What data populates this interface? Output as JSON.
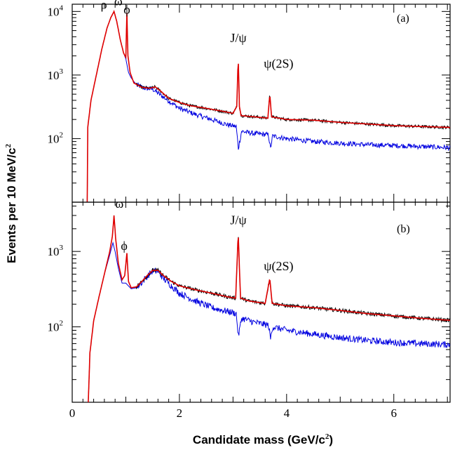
{
  "chart_data": {
    "type": "line",
    "xlabel_main": "Candidate mass (GeV/c",
    "xlabel_sup": "2",
    "xlabel_tail": ")",
    "ylabel_main": "Events per 10 MeV/c",
    "ylabel_sup": "2",
    "xlim": [
      0,
      7.05
    ],
    "x_ticks": [
      0,
      2,
      4,
      6
    ],
    "x_tick_labels": [
      "0",
      "2",
      "4",
      "6"
    ],
    "log_y": true,
    "colors": {
      "data": "#000000",
      "fit": "#e00000",
      "background": "#0000e0"
    },
    "panels": [
      {
        "tag": "(a)",
        "ylim": [
          10,
          13000
        ],
        "y_tick_labels": [
          {
            "base": "10",
            "exp": "2",
            "value": 100
          },
          {
            "base": "10",
            "exp": "3",
            "value": 1000
          },
          {
            "base": "10",
            "exp": "4",
            "value": 10000
          }
        ],
        "peak_labels": [
          {
            "text": "ρ",
            "x": 0.59,
            "y": 11000
          },
          {
            "text": "ω",
            "x": 0.86,
            "y": 12500
          },
          {
            "text": "ϕ",
            "x": 1.02,
            "y": 9200
          },
          {
            "text": "J/ψ",
            "x": 3.1,
            "y": 3300
          },
          {
            "text": "ψ(2S)",
            "x": 3.85,
            "y": 1300
          }
        ],
        "data_points": [
          [
            0.28,
            10
          ],
          [
            0.29,
            150
          ],
          [
            0.35,
            400
          ],
          [
            0.45,
            1000
          ],
          [
            0.55,
            2500
          ],
          [
            0.65,
            5500
          ],
          [
            0.72,
            8000
          ],
          [
            0.78,
            10000
          ],
          [
            0.83,
            7000
          ],
          [
            0.9,
            3500
          ],
          [
            0.96,
            2200
          ],
          [
            1.0,
            1900
          ],
          [
            1.02,
            9500
          ],
          [
            1.04,
            2000
          ],
          [
            1.08,
            1100
          ],
          [
            1.15,
            750
          ],
          [
            1.3,
            640
          ],
          [
            1.45,
            620
          ],
          [
            1.55,
            650
          ],
          [
            1.65,
            560
          ],
          [
            1.8,
            430
          ],
          [
            2.0,
            370
          ],
          [
            2.2,
            330
          ],
          [
            2.5,
            300
          ],
          [
            2.8,
            270
          ],
          [
            3.0,
            250
          ],
          [
            3.07,
            320
          ],
          [
            3.097,
            1800
          ],
          [
            3.12,
            320
          ],
          [
            3.15,
            230
          ],
          [
            3.4,
            220
          ],
          [
            3.65,
            210
          ],
          [
            3.686,
            520
          ],
          [
            3.72,
            220
          ],
          [
            4.0,
            200
          ],
          [
            4.5,
            195
          ],
          [
            5.0,
            180
          ],
          [
            5.5,
            170
          ],
          [
            6.0,
            160
          ],
          [
            6.5,
            155
          ],
          [
            7.05,
            150
          ]
        ],
        "fit_points": [
          [
            0.28,
            10
          ],
          [
            0.29,
            150
          ],
          [
            0.35,
            400
          ],
          [
            0.45,
            1000
          ],
          [
            0.55,
            2500
          ],
          [
            0.65,
            5500
          ],
          [
            0.72,
            8000
          ],
          [
            0.78,
            10000
          ],
          [
            0.83,
            7000
          ],
          [
            0.9,
            3500
          ],
          [
            0.96,
            2200
          ],
          [
            1.0,
            1900
          ],
          [
            1.02,
            9500
          ],
          [
            1.04,
            2000
          ],
          [
            1.08,
            1100
          ],
          [
            1.15,
            750
          ],
          [
            1.3,
            640
          ],
          [
            1.45,
            620
          ],
          [
            1.55,
            650
          ],
          [
            1.65,
            560
          ],
          [
            1.8,
            430
          ],
          [
            2.0,
            370
          ],
          [
            2.2,
            330
          ],
          [
            2.5,
            300
          ],
          [
            2.8,
            270
          ],
          [
            3.0,
            250
          ],
          [
            3.07,
            320
          ],
          [
            3.097,
            1900
          ],
          [
            3.12,
            320
          ],
          [
            3.15,
            230
          ],
          [
            3.4,
            220
          ],
          [
            3.65,
            210
          ],
          [
            3.686,
            500
          ],
          [
            3.72,
            220
          ],
          [
            4.0,
            200
          ],
          [
            4.5,
            195
          ],
          [
            5.0,
            180
          ],
          [
            5.5,
            170
          ],
          [
            6.0,
            160
          ],
          [
            6.5,
            155
          ],
          [
            7.05,
            150
          ]
        ],
        "background_points": [
          [
            0.28,
            10
          ],
          [
            0.29,
            150
          ],
          [
            0.35,
            400
          ],
          [
            0.45,
            1000
          ],
          [
            0.55,
            2500
          ],
          [
            0.65,
            5500
          ],
          [
            0.72,
            8000
          ],
          [
            0.78,
            10000
          ],
          [
            0.83,
            7000
          ],
          [
            0.9,
            3500
          ],
          [
            0.96,
            2200
          ],
          [
            1.0,
            1800
          ],
          [
            1.05,
            1100
          ],
          [
            1.1,
            900
          ],
          [
            1.2,
            700
          ],
          [
            1.35,
            620
          ],
          [
            1.5,
            600
          ],
          [
            1.6,
            520
          ],
          [
            1.75,
            420
          ],
          [
            2.0,
            300
          ],
          [
            2.3,
            240
          ],
          [
            2.6,
            200
          ],
          [
            2.9,
            165
          ],
          [
            3.06,
            155
          ],
          [
            3.1,
            70
          ],
          [
            3.16,
            130
          ],
          [
            3.4,
            120
          ],
          [
            3.66,
            115
          ],
          [
            3.7,
            70
          ],
          [
            3.74,
            110
          ],
          [
            4.0,
            100
          ],
          [
            4.5,
            90
          ],
          [
            5.0,
            85
          ],
          [
            5.5,
            80
          ],
          [
            6.0,
            78
          ],
          [
            6.5,
            75
          ],
          [
            7.05,
            72
          ]
        ],
        "data_noise": 0.055,
        "background_noise": 0.09
      },
      {
        "tag": "(b)",
        "ylim": [
          10,
          4500
        ],
        "y_tick_labels": [
          {
            "base": "10",
            "exp": "2",
            "value": 100
          },
          {
            "base": "10",
            "exp": "3",
            "value": 1000
          }
        ],
        "peak_labels": [
          {
            "text": "ω",
            "x": 0.88,
            "y": 3800
          },
          {
            "text": "ϕ",
            "x": 0.97,
            "y": 1050
          },
          {
            "text": "J/ψ",
            "x": 3.1,
            "y": 2300
          },
          {
            "text": "ψ(2S)",
            "x": 3.85,
            "y": 560
          }
        ],
        "data_points": [
          [
            0.3,
            10
          ],
          [
            0.33,
            45
          ],
          [
            0.4,
            120
          ],
          [
            0.5,
            250
          ],
          [
            0.6,
            500
          ],
          [
            0.7,
            1000
          ],
          [
            0.75,
            1600
          ],
          [
            0.78,
            3000
          ],
          [
            0.81,
            1500
          ],
          [
            0.86,
            700
          ],
          [
            0.93,
            420
          ],
          [
            0.98,
            480
          ],
          [
            1.02,
            950
          ],
          [
            1.05,
            400
          ],
          [
            1.1,
            330
          ],
          [
            1.2,
            340
          ],
          [
            1.3,
            400
          ],
          [
            1.4,
            480
          ],
          [
            1.5,
            560
          ],
          [
            1.6,
            560
          ],
          [
            1.7,
            480
          ],
          [
            1.85,
            400
          ],
          [
            2.0,
            350
          ],
          [
            2.3,
            310
          ],
          [
            2.6,
            280
          ],
          [
            2.9,
            250
          ],
          [
            3.05,
            240
          ],
          [
            3.097,
            1750
          ],
          [
            3.14,
            240
          ],
          [
            3.3,
            220
          ],
          [
            3.6,
            205
          ],
          [
            3.686,
            440
          ],
          [
            3.73,
            205
          ],
          [
            4.0,
            190
          ],
          [
            4.5,
            180
          ],
          [
            5.0,
            165
          ],
          [
            5.5,
            150
          ],
          [
            6.0,
            140
          ],
          [
            6.5,
            130
          ],
          [
            7.05,
            122
          ]
        ],
        "fit_points": [
          [
            0.3,
            10
          ],
          [
            0.33,
            45
          ],
          [
            0.4,
            120
          ],
          [
            0.5,
            250
          ],
          [
            0.6,
            500
          ],
          [
            0.7,
            1000
          ],
          [
            0.75,
            1600
          ],
          [
            0.78,
            3000
          ],
          [
            0.81,
            1500
          ],
          [
            0.86,
            700
          ],
          [
            0.93,
            420
          ],
          [
            0.98,
            480
          ],
          [
            1.02,
            950
          ],
          [
            1.05,
            400
          ],
          [
            1.1,
            330
          ],
          [
            1.2,
            340
          ],
          [
            1.3,
            400
          ],
          [
            1.4,
            480
          ],
          [
            1.5,
            560
          ],
          [
            1.6,
            560
          ],
          [
            1.7,
            480
          ],
          [
            1.85,
            400
          ],
          [
            2.0,
            350
          ],
          [
            2.3,
            310
          ],
          [
            2.6,
            280
          ],
          [
            2.9,
            250
          ],
          [
            3.05,
            240
          ],
          [
            3.097,
            1750
          ],
          [
            3.14,
            240
          ],
          [
            3.3,
            220
          ],
          [
            3.6,
            205
          ],
          [
            3.686,
            440
          ],
          [
            3.73,
            205
          ],
          [
            4.0,
            190
          ],
          [
            4.5,
            180
          ],
          [
            5.0,
            165
          ],
          [
            5.5,
            150
          ],
          [
            6.0,
            140
          ],
          [
            6.5,
            130
          ],
          [
            7.05,
            122
          ]
        ],
        "background_points": [
          [
            0.3,
            10
          ],
          [
            0.33,
            45
          ],
          [
            0.4,
            120
          ],
          [
            0.5,
            250
          ],
          [
            0.6,
            500
          ],
          [
            0.7,
            900
          ],
          [
            0.76,
            1300
          ],
          [
            0.8,
            1000
          ],
          [
            0.86,
            600
          ],
          [
            0.93,
            380
          ],
          [
            1.0,
            380
          ],
          [
            1.1,
            320
          ],
          [
            1.2,
            330
          ],
          [
            1.3,
            390
          ],
          [
            1.4,
            470
          ],
          [
            1.5,
            550
          ],
          [
            1.6,
            540
          ],
          [
            1.7,
            440
          ],
          [
            1.85,
            350
          ],
          [
            2.0,
            280
          ],
          [
            2.3,
            220
          ],
          [
            2.6,
            180
          ],
          [
            2.9,
            160
          ],
          [
            3.06,
            150
          ],
          [
            3.1,
            75
          ],
          [
            3.16,
            130
          ],
          [
            3.4,
            115
          ],
          [
            3.66,
            105
          ],
          [
            3.7,
            70
          ],
          [
            3.74,
            100
          ],
          [
            4.0,
            90
          ],
          [
            4.5,
            80
          ],
          [
            5.0,
            72
          ],
          [
            5.5,
            66
          ],
          [
            6.0,
            62
          ],
          [
            6.5,
            60
          ],
          [
            7.05,
            58
          ]
        ],
        "data_noise": 0.06,
        "background_noise": 0.1
      }
    ]
  }
}
